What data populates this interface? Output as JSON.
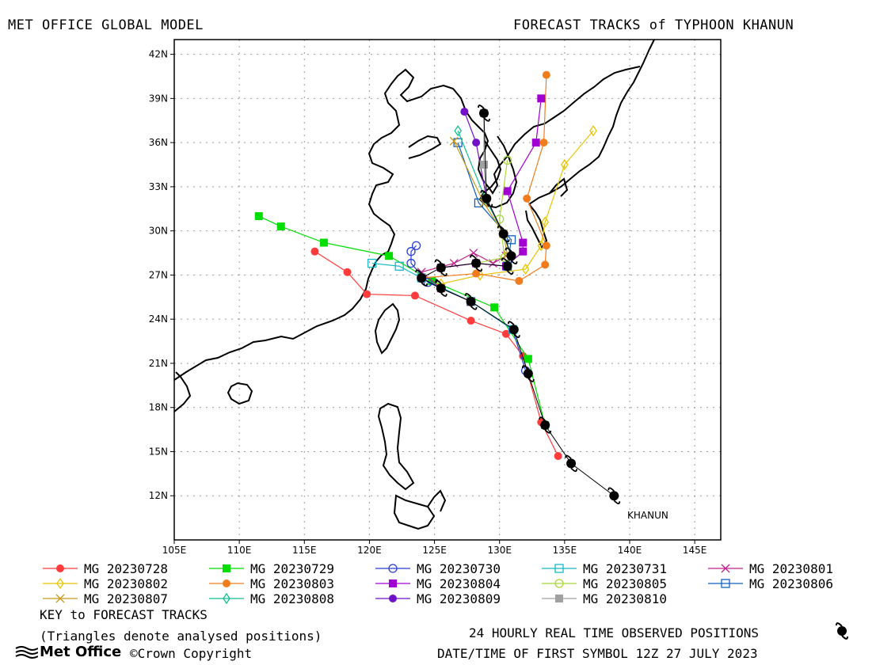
{
  "header": {
    "left_title": "MET OFFICE GLOBAL MODEL",
    "right_title": "FORECAST TRACKS of TYPHOON KHANUN"
  },
  "map": {
    "x_ticks": [
      "105E",
      "110E",
      "115E",
      "120E",
      "125E",
      "130E",
      "135E",
      "140E",
      "145E"
    ],
    "y_ticks": [
      "42N",
      "39N",
      "36N",
      "33N",
      "30N",
      "27N",
      "24N",
      "21N",
      "18N",
      "15N",
      "12N"
    ],
    "storm_label": "KHANUN"
  },
  "legend": {
    "items": [
      {
        "label": "MG 20230728",
        "color": "#ff3b3b",
        "marker": "filled-circle"
      },
      {
        "label": "MG 20230729",
        "color": "#00dd00",
        "marker": "filled-square"
      },
      {
        "label": "MG 20230730",
        "color": "#2a3fd8",
        "marker": "open-circle"
      },
      {
        "label": "MG 20230731",
        "color": "#17b8c9",
        "marker": "open-square"
      },
      {
        "label": "MG 20230801",
        "color": "#c0208c",
        "marker": "cross"
      },
      {
        "label": "MG 20230802",
        "color": "#e8c400",
        "marker": "open-diamond"
      },
      {
        "label": "MG 20230803",
        "color": "#f07c1c",
        "marker": "filled-circle"
      },
      {
        "label": "MG 20230804",
        "color": "#a000d0",
        "marker": "filled-square"
      },
      {
        "label": "MG 20230805",
        "color": "#a8d838",
        "marker": "open-circle"
      },
      {
        "label": "MG 20230806",
        "color": "#1060c0",
        "marker": "open-square"
      },
      {
        "label": "MG 20230807",
        "color": "#c89a18",
        "marker": "cross"
      },
      {
        "label": "MG 20230808",
        "color": "#10c090",
        "marker": "open-diamond"
      },
      {
        "label": "MG 20230809",
        "color": "#7010c8",
        "marker": "filled-circle"
      },
      {
        "label": "MG 20230810",
        "color": "#a0a0a0",
        "marker": "filled-square"
      }
    ],
    "key_title": "KEY to FORECAST TRACKS",
    "key_note": "(Triangles denote analysed positions)"
  },
  "footer": {
    "brand": "Met Office",
    "copyright": "©Crown Copyright",
    "observed_text": "24 HOURLY REAL TIME OBSERVED POSITIONS",
    "datetime_text": "DATE/TIME OF FIRST SYMBOL 12Z 27 JULY 2023"
  },
  "tracks": {
    "observed": [
      [
        138.8,
        12.0
      ],
      [
        135.5,
        14.2
      ],
      [
        133.5,
        16.8
      ],
      [
        132.2,
        20.3
      ],
      [
        131.1,
        23.3
      ],
      [
        127.8,
        25.2
      ],
      [
        125.5,
        26.1
      ],
      [
        124.0,
        26.8
      ],
      [
        125.5,
        27.5
      ],
      [
        128.2,
        27.8
      ],
      [
        130.6,
        27.6
      ],
      [
        130.9,
        28.3
      ],
      [
        130.3,
        29.8
      ],
      [
        129.0,
        32.2
      ],
      [
        128.8,
        38.0
      ]
    ],
    "forecast": [
      {
        "name": "MG 20230728",
        "color": "#ff3b3b",
        "points": [
          [
            134.5,
            14.7
          ],
          [
            133.2,
            17.0
          ],
          [
            131.8,
            21.5
          ],
          [
            130.5,
            23.0
          ],
          [
            127.8,
            23.9
          ],
          [
            123.5,
            25.6
          ],
          [
            119.8,
            25.7
          ],
          [
            118.3,
            27.2
          ],
          [
            115.8,
            28.6
          ]
        ]
      },
      {
        "name": "MG 20230729",
        "color": "#00dd00",
        "points": [
          [
            133.5,
            16.8
          ],
          [
            132.2,
            21.3
          ],
          [
            129.6,
            24.8
          ],
          [
            124.8,
            26.6
          ],
          [
            121.5,
            28.3
          ],
          [
            116.5,
            29.2
          ],
          [
            113.2,
            30.3
          ],
          [
            111.5,
            31.0
          ]
        ]
      },
      {
        "name": "MG 20230730",
        "color": "#2a3fd8",
        "points": [
          [
            132.0,
            20.5
          ],
          [
            131.0,
            23.3
          ],
          [
            127.8,
            25.2
          ],
          [
            124.5,
            26.5
          ],
          [
            123.2,
            27.8
          ],
          [
            123.2,
            28.6
          ],
          [
            123.6,
            29.0
          ]
        ]
      },
      {
        "name": "MG 20230731",
        "color": "#17b8c9",
        "points": [
          [
            131.0,
            23.3
          ],
          [
            127.8,
            25.2
          ],
          [
            124.0,
            26.8
          ],
          [
            122.3,
            27.6
          ],
          [
            120.2,
            27.8
          ]
        ]
      },
      {
        "name": "MG 20230801",
        "color": "#c0208c",
        "points": [
          [
            127.8,
            25.2
          ],
          [
            125.5,
            26.1
          ],
          [
            124.0,
            27.2
          ],
          [
            126.5,
            27.8
          ],
          [
            128.0,
            28.5
          ],
          [
            129.5,
            27.8
          ],
          [
            130.5,
            28.3
          ]
        ]
      },
      {
        "name": "MG 20230802",
        "color": "#e8c400",
        "points": [
          [
            125.5,
            26.4
          ],
          [
            128.5,
            27.0
          ],
          [
            132.0,
            27.4
          ],
          [
            133.2,
            29.0
          ],
          [
            133.5,
            30.6
          ],
          [
            135.0,
            34.5
          ],
          [
            137.2,
            36.8
          ]
        ]
      },
      {
        "name": "MG 20230803",
        "color": "#f07c1c",
        "points": [
          [
            124.0,
            26.8
          ],
          [
            128.2,
            27.1
          ],
          [
            131.5,
            26.6
          ],
          [
            133.5,
            27.7
          ],
          [
            133.6,
            29.0
          ],
          [
            132.1,
            32.2
          ],
          [
            133.4,
            36.0
          ],
          [
            133.6,
            40.6
          ]
        ]
      },
      {
        "name": "MG 20230804",
        "color": "#a000d0",
        "points": [
          [
            125.5,
            27.5
          ],
          [
            128.2,
            27.8
          ],
          [
            130.5,
            27.6
          ],
          [
            131.8,
            28.6
          ],
          [
            131.8,
            29.2
          ],
          [
            130.6,
            32.7
          ],
          [
            132.8,
            36.0
          ],
          [
            133.2,
            39.0
          ]
        ]
      },
      {
        "name": "MG 20230805",
        "color": "#a8d838",
        "points": [
          [
            128.2,
            27.8
          ],
          [
            130.4,
            28.2
          ],
          [
            130.0,
            30.8
          ],
          [
            130.6,
            34.8
          ]
        ]
      },
      {
        "name": "MG 20230806",
        "color": "#1060c0",
        "points": [
          [
            130.6,
            27.6
          ],
          [
            130.9,
            29.4
          ],
          [
            128.4,
            31.9
          ],
          [
            126.8,
            36.0
          ]
        ]
      },
      {
        "name": "MG 20230807",
        "color": "#c89a18",
        "points": [
          [
            130.6,
            28.4
          ],
          [
            130.3,
            29.8
          ],
          [
            128.8,
            31.9
          ],
          [
            126.5,
            36.1
          ]
        ]
      },
      {
        "name": "MG 20230808",
        "color": "#10c090",
        "points": [
          [
            130.9,
            28.3
          ],
          [
            130.3,
            29.8
          ],
          [
            128.9,
            32.2
          ],
          [
            126.8,
            36.8
          ]
        ]
      },
      {
        "name": "MG 20230809",
        "color": "#7010c8",
        "points": [
          [
            130.3,
            29.8
          ],
          [
            129.0,
            32.2
          ],
          [
            128.2,
            36.0
          ],
          [
            127.3,
            38.1
          ]
        ]
      },
      {
        "name": "MG 20230810",
        "color": "#a0a0a0",
        "points": [
          [
            129.0,
            32.2
          ],
          [
            128.8,
            34.5
          ],
          [
            128.8,
            38.0
          ]
        ]
      }
    ]
  }
}
